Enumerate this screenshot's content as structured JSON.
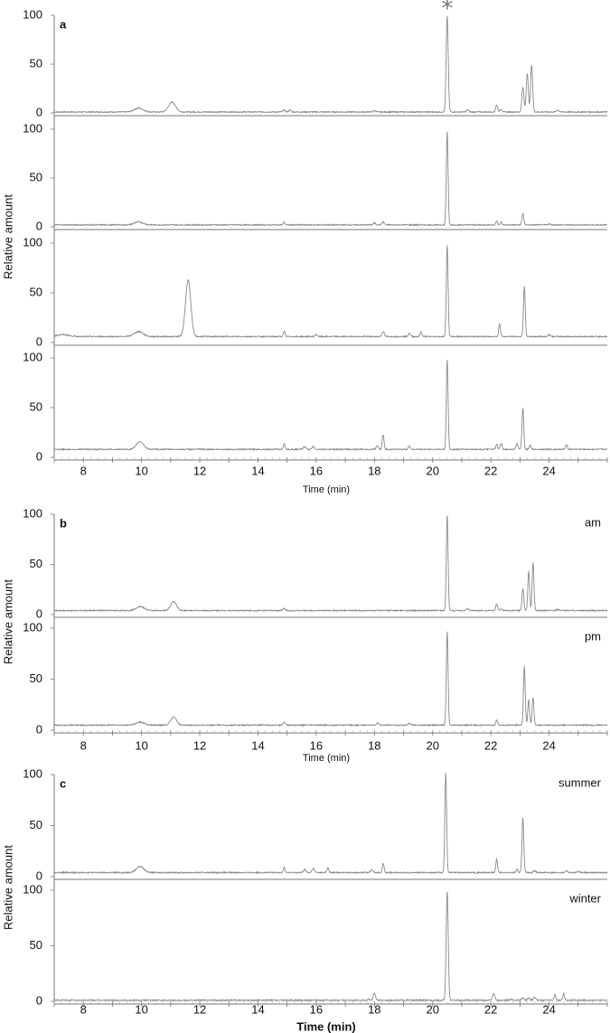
{
  "chart_data": [
    {
      "panel": "a",
      "type": "line",
      "xlabel": "Time (min)",
      "ylabel": "Relative amount",
      "xlim": [
        7,
        26
      ],
      "x_ticks": [
        "8",
        "10",
        "12",
        "14",
        "16",
        "18",
        "20",
        "22",
        "24"
      ],
      "annotation": "*",
      "annotation_x": 20.5,
      "subplots": [
        {
          "baseline": 1,
          "ylim": [
            0,
            100
          ],
          "y_ticks": [
            "0",
            "50",
            "100"
          ],
          "condition": "",
          "peaks": [
            [
              9.9,
              4,
              0.15
            ],
            [
              11.05,
              10,
              0.12
            ],
            [
              14.9,
              2,
              0.04
            ],
            [
              15.1,
              2,
              0.04
            ],
            [
              18.0,
              1.5,
              0.04
            ],
            [
              20.5,
              99,
              0.035
            ],
            [
              21.2,
              2,
              0.04
            ],
            [
              22.2,
              7,
              0.035
            ],
            [
              22.35,
              3,
              0.035
            ],
            [
              23.1,
              25,
              0.035
            ],
            [
              23.25,
              40,
              0.035
            ],
            [
              23.4,
              48,
              0.035
            ],
            [
              24.3,
              2,
              0.04
            ]
          ]
        },
        {
          "baseline": 2,
          "ylim": [
            0,
            100
          ],
          "y_ticks": [
            "0",
            "50",
            "100"
          ],
          "condition": "",
          "peaks": [
            [
              9.9,
              3,
              0.15
            ],
            [
              14.9,
              3,
              0.03
            ],
            [
              18.0,
              2,
              0.04
            ],
            [
              18.3,
              3,
              0.04
            ],
            [
              20.5,
              96,
              0.03
            ],
            [
              22.2,
              4,
              0.03
            ],
            [
              22.35,
              3,
              0.03
            ],
            [
              23.1,
              12,
              0.03
            ],
            [
              24.0,
              1,
              0.04
            ]
          ]
        },
        {
          "baseline": 6,
          "ylim": [
            0,
            100
          ],
          "y_ticks": [
            "0",
            "50",
            "100"
          ],
          "condition": "",
          "peaks": [
            [
              7.3,
              2,
              0.2
            ],
            [
              9.9,
              5,
              0.15
            ],
            [
              11.6,
              57,
              0.09
            ],
            [
              14.9,
              5,
              0.03
            ],
            [
              16.0,
              2,
              0.04
            ],
            [
              18.3,
              5,
              0.04
            ],
            [
              19.2,
              3,
              0.04
            ],
            [
              19.6,
              5,
              0.03
            ],
            [
              20.5,
              93,
              0.03
            ],
            [
              22.3,
              13,
              0.03
            ],
            [
              23.15,
              51,
              0.03
            ],
            [
              24.0,
              2,
              0.04
            ]
          ]
        },
        {
          "baseline": 8,
          "ylim": [
            0,
            100
          ],
          "y_ticks": [
            "0",
            "50",
            "100"
          ],
          "condition": "",
          "peaks": [
            [
              9.95,
              8,
              0.12
            ],
            [
              14.9,
              6,
              0.03
            ],
            [
              15.6,
              3,
              0.04
            ],
            [
              15.9,
              3,
              0.04
            ],
            [
              18.1,
              4,
              0.04
            ],
            [
              18.3,
              15,
              0.03
            ],
            [
              19.2,
              3,
              0.04
            ],
            [
              20.5,
              90,
              0.03
            ],
            [
              22.2,
              5,
              0.03
            ],
            [
              22.35,
              6,
              0.03
            ],
            [
              22.9,
              6,
              0.03
            ],
            [
              23.1,
              42,
              0.03
            ],
            [
              23.35,
              4,
              0.03
            ],
            [
              24.6,
              5,
              0.03
            ]
          ]
        }
      ]
    },
    {
      "panel": "b",
      "type": "line",
      "xlabel": "Time (min)",
      "ylabel": "Relative amount",
      "xlim": [
        7,
        26
      ],
      "x_ticks": [
        "8",
        "10",
        "12",
        "14",
        "16",
        "18",
        "20",
        "22",
        "24"
      ],
      "subplots": [
        {
          "baseline": 4,
          "ylim": [
            0,
            100
          ],
          "y_ticks": [
            "0",
            "50",
            "100"
          ],
          "condition": "am",
          "peaks": [
            [
              9.95,
              4,
              0.14
            ],
            [
              11.1,
              9,
              0.1
            ],
            [
              14.9,
              2,
              0.04
            ],
            [
              20.5,
              96,
              0.03
            ],
            [
              21.2,
              2,
              0.04
            ],
            [
              22.2,
              7,
              0.03
            ],
            [
              22.35,
              2,
              0.03
            ],
            [
              23.1,
              22,
              0.03
            ],
            [
              23.3,
              40,
              0.03
            ],
            [
              23.45,
              48,
              0.03
            ],
            [
              24.3,
              1,
              0.04
            ]
          ]
        },
        {
          "baseline": 5,
          "ylim": [
            0,
            100
          ],
          "y_ticks": [
            "0",
            "50",
            "100"
          ],
          "condition": "pm",
          "peaks": [
            [
              9.95,
              3,
              0.14
            ],
            [
              11.1,
              8,
              0.1
            ],
            [
              14.9,
              3,
              0.04
            ],
            [
              18.1,
              2,
              0.04
            ],
            [
              19.2,
              2,
              0.04
            ],
            [
              20.5,
              92,
              0.03
            ],
            [
              22.2,
              5,
              0.03
            ],
            [
              23.15,
              58,
              0.03
            ],
            [
              23.3,
              25,
              0.03
            ],
            [
              23.45,
              27,
              0.03
            ]
          ]
        }
      ]
    },
    {
      "panel": "c",
      "type": "line",
      "xlabel": "Time (min)",
      "ylabel": "Relative amount",
      "xlim": [
        7,
        26
      ],
      "x_ticks": [
        "8",
        "10",
        "12",
        "14",
        "16",
        "18",
        "20",
        "22",
        "24"
      ],
      "subplots": [
        {
          "baseline": 4,
          "ylim": [
            0,
            100
          ],
          "y_ticks": [
            "0",
            "50",
            "100"
          ],
          "condition": "summer",
          "peaks": [
            [
              9.95,
              6,
              0.13
            ],
            [
              14.9,
              5,
              0.03
            ],
            [
              15.6,
              3,
              0.04
            ],
            [
              15.9,
              4,
              0.04
            ],
            [
              16.4,
              5,
              0.03
            ],
            [
              17.9,
              3,
              0.04
            ],
            [
              18.3,
              9,
              0.03
            ],
            [
              20.45,
              98,
              0.03
            ],
            [
              22.2,
              13,
              0.03
            ],
            [
              22.9,
              3,
              0.03
            ],
            [
              23.1,
              54,
              0.03
            ],
            [
              23.5,
              2,
              0.04
            ],
            [
              24.6,
              2,
              0.04
            ],
            [
              25.0,
              1,
              0.04
            ]
          ]
        },
        {
          "baseline": 1,
          "ylim": [
            0,
            100
          ],
          "y_ticks": [
            "0",
            "50",
            "100"
          ],
          "condition": "winter",
          "peaks": [
            [
              17.8,
              1,
              0.04
            ],
            [
              18.0,
              6,
              0.04
            ],
            [
              20.5,
              98,
              0.035
            ],
            [
              22.1,
              6,
              0.04
            ],
            [
              22.7,
              1,
              0.04
            ],
            [
              23.1,
              2,
              0.04
            ],
            [
              23.3,
              2,
              0.04
            ],
            [
              23.5,
              3,
              0.04
            ],
            [
              24.2,
              5,
              0.03
            ],
            [
              24.5,
              6,
              0.03
            ]
          ]
        }
      ]
    }
  ]
}
